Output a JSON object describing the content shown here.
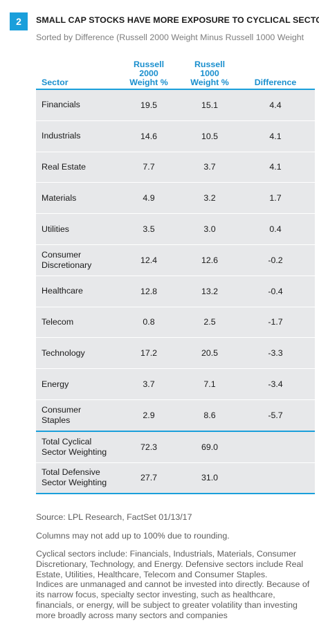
{
  "header": {
    "badge": "2",
    "title": "SMALL CAP STOCKS HAVE MORE EXPOSURE TO CYCLICAL SECTORS",
    "subtitle": "Sorted by Difference (Russell 2000 Weight Minus Russell 1000 Weight"
  },
  "chart_data": {
    "type": "table",
    "title": "SMALL CAP STOCKS HAVE MORE EXPOSURE TO CYCLICAL SECTORS",
    "subtitle": "Sorted by Difference (Russell 2000 Weight Minus Russell 1000 Weight",
    "columns": {
      "sector": "Sector",
      "r2000": [
        "Russell",
        "2000",
        "Weight %"
      ],
      "r1000": [
        "Russell",
        "1000",
        "Weight %"
      ],
      "difference": "Difference"
    },
    "rows": [
      {
        "sector": [
          "Financials"
        ],
        "r2000": "19.5",
        "r1000": "15.1",
        "difference": "4.4"
      },
      {
        "sector": [
          "Industrials"
        ],
        "r2000": "14.6",
        "r1000": "10.5",
        "difference": "4.1"
      },
      {
        "sector": [
          "Real Estate"
        ],
        "r2000": "7.7",
        "r1000": "3.7",
        "difference": "4.1"
      },
      {
        "sector": [
          "Materials"
        ],
        "r2000": "4.9",
        "r1000": "3.2",
        "difference": "1.7"
      },
      {
        "sector": [
          "Utilities"
        ],
        "r2000": "3.5",
        "r1000": "3.0",
        "difference": "0.4"
      },
      {
        "sector": [
          "Consumer",
          "Discretionary"
        ],
        "r2000": "12.4",
        "r1000": "12.6",
        "difference": "-0.2"
      },
      {
        "sector": [
          "Healthcare"
        ],
        "r2000": "12.8",
        "r1000": "13.2",
        "difference": "-0.4"
      },
      {
        "sector": [
          "Telecom"
        ],
        "r2000": "0.8",
        "r1000": "2.5",
        "difference": "-1.7"
      },
      {
        "sector": [
          "Technology"
        ],
        "r2000": "17.2",
        "r1000": "20.5",
        "difference": "-3.3"
      },
      {
        "sector": [
          "Energy"
        ],
        "r2000": "3.7",
        "r1000": "7.1",
        "difference": "-3.4"
      },
      {
        "sector": [
          "Consumer",
          "Staples"
        ],
        "r2000": "2.9",
        "r1000": "8.6",
        "difference": "-5.7"
      }
    ],
    "totals": [
      {
        "sector": [
          "Total Cyclical",
          "Sector Weighting"
        ],
        "r2000": "72.3",
        "r1000": "69.0",
        "difference": ""
      },
      {
        "sector": [
          "Total Defensive",
          "Sector Weighting"
        ],
        "r2000": "27.7",
        "r1000": "31.0",
        "difference": ""
      }
    ]
  },
  "footnotes": {
    "source": "Source: LPL Research, FactSet   01/13/17",
    "rounding": "Columns may not add up to 100% due to rounding.",
    "sectors": "Cyclical sectors include: Financials, Industrials, Materials, Consumer Discretionary, Technology, and Energy. Defensive sectors include Real Estate, Utilities, Healthcare, Telecom and Consumer Staples.",
    "disclaimer": "Indices are unmanaged and cannot be invested into directly. Because of its narrow focus, specialty sector investing, such as healthcare, financials, or energy, will be subject to greater volatility than investing more broadly across many sectors and companies"
  },
  "colors": {
    "accent": "#1a9fdb",
    "header_text": "#1a8fce",
    "row_shade": "#e7e8ea"
  }
}
